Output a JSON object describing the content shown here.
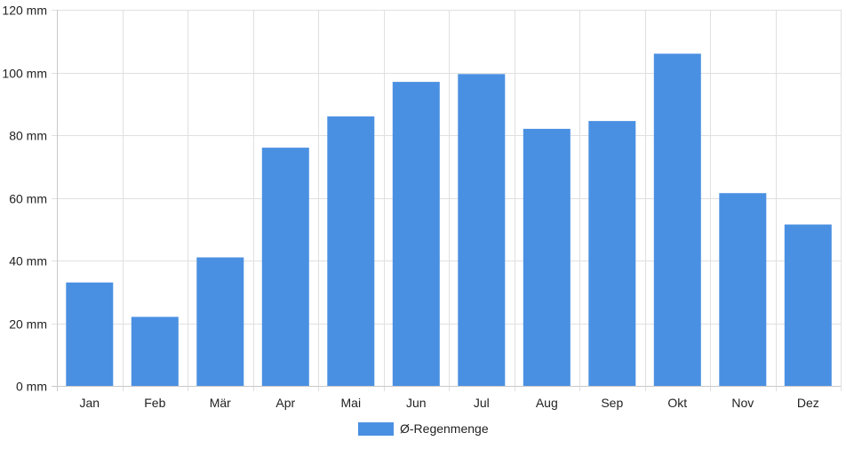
{
  "chart_data": {
    "type": "bar",
    "categories": [
      "Jan",
      "Feb",
      "Mär",
      "Apr",
      "Mai",
      "Jun",
      "Jul",
      "Aug",
      "Sep",
      "Okt",
      "Nov",
      "Dez"
    ],
    "series": [
      {
        "name": "Ø-Regenmenge",
        "values": [
          33,
          22,
          41,
          76,
          86,
          97,
          99.5,
          82,
          84.5,
          106,
          61.5,
          51.5
        ],
        "color": "#4a90e2"
      }
    ],
    "y_unit": "mm",
    "ylim": [
      0,
      120
    ],
    "yticks": [
      0,
      20,
      40,
      60,
      80,
      100,
      120
    ],
    "ytick_labels": [
      "0 mm",
      "20 mm",
      "40 mm",
      "60 mm",
      "80 mm",
      "100 mm",
      "120 mm"
    ],
    "grid": true,
    "legend_position": "bottom"
  }
}
